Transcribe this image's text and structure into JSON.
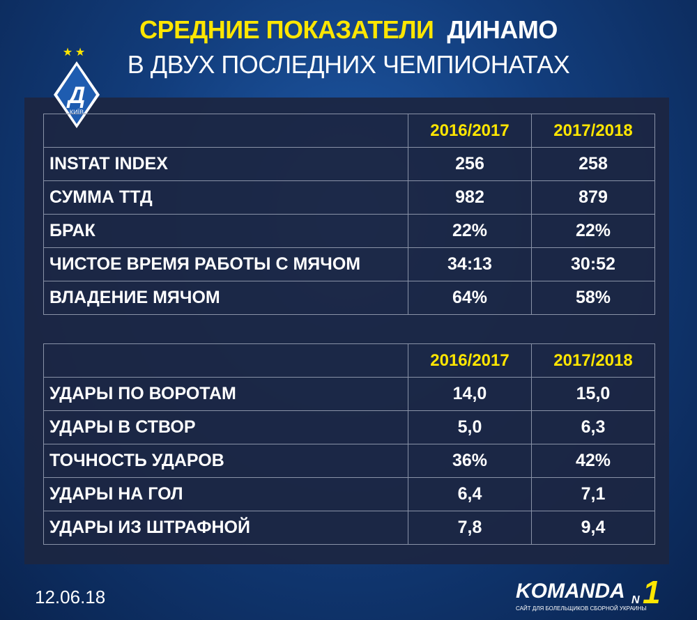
{
  "header": {
    "title_highlight": "СРЕДНИЕ ПОКАЗАТЕЛИ",
    "title_team": "ДИНАМО",
    "subtitle": "В ДВУХ ПОСЛЕДНИХ ЧЕМПИОНАТАХ"
  },
  "logo": {
    "letter": "Д",
    "city": "КИЇВ"
  },
  "tables": [
    {
      "columns": [
        "2016/2017",
        "2017/2018"
      ],
      "rows": [
        [
          "INSTAT INDEX",
          "256",
          "258"
        ],
        [
          "СУММА ТТД",
          "982",
          "879"
        ],
        [
          "БРАК",
          "22%",
          "22%"
        ],
        [
          "ЧИСТОЕ ВРЕМЯ РАБОТЫ С МЯЧОМ",
          "34:13",
          "30:52"
        ],
        [
          "ВЛАДЕНИЕ МЯЧОМ",
          "64%",
          "58%"
        ]
      ]
    },
    {
      "columns": [
        "2016/2017",
        "2017/2018"
      ],
      "rows": [
        [
          "УДАРЫ ПО ВОРОТАМ",
          "14,0",
          "15,0"
        ],
        [
          "УДАРЫ В СТВОР",
          "5,0",
          "6,3"
        ],
        [
          "ТОЧНОСТЬ УДАРОВ",
          "36%",
          "42%"
        ],
        [
          "УДАРЫ НА ГОЛ",
          "6,4",
          "7,1"
        ],
        [
          "УДАРЫ ИЗ ШТРАФНОЙ",
          "7,8",
          "9,4"
        ]
      ]
    }
  ],
  "footer": {
    "date": "12.06.18",
    "brand": "KOMANDA",
    "brand_n": "N",
    "brand_1": "1",
    "tagline": "САЙТ ДЛЯ БОЛЕЛЬЩИКОВ СБОРНОЙ УКРАИНЫ"
  }
}
